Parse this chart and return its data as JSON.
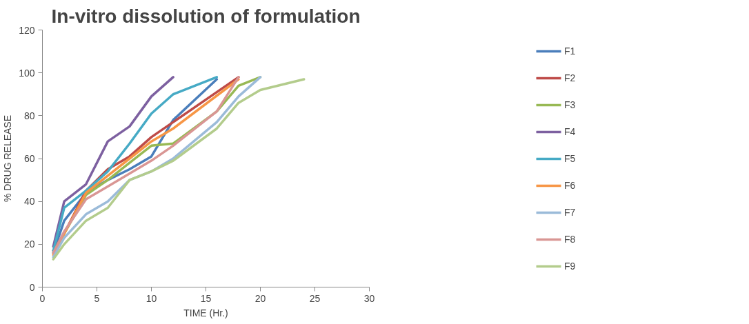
{
  "chart_data": {
    "type": "line",
    "title": "In-vitro dissolution of formulation",
    "xlabel": "TIME (Hr.)",
    "ylabel": "% DRUG RELEASE",
    "xlim": [
      0,
      30
    ],
    "xticks": [
      0,
      5,
      10,
      15,
      20,
      25,
      30
    ],
    "ylim": [
      0,
      120
    ],
    "yticks": [
      0,
      20,
      40,
      60,
      80,
      100,
      120
    ],
    "grid": false,
    "legend": "right",
    "marker": "none",
    "line_style": "solid",
    "series": [
      {
        "name": "F1",
        "color": "#4a7ebb",
        "x": [
          1,
          2,
          4,
          6,
          8,
          10,
          12,
          16
        ],
        "values": [
          16,
          31,
          44,
          50,
          55,
          61,
          78,
          97
        ]
      },
      {
        "name": "F2",
        "color": "#be4b48",
        "x": [
          1,
          2,
          4,
          6,
          8,
          10,
          12,
          18
        ],
        "values": [
          17,
          25,
          45,
          55,
          61,
          70,
          77,
          98
        ]
      },
      {
        "name": "F3",
        "color": "#98b954",
        "x": [
          1,
          2,
          4,
          6,
          8,
          10,
          12,
          16,
          18,
          20
        ],
        "values": [
          16,
          25,
          43,
          50,
          58,
          66,
          67,
          82,
          94,
          98
        ]
      },
      {
        "name": "F4",
        "color": "#7d60a0",
        "x": [
          1,
          2,
          4,
          6,
          8,
          10,
          12
        ],
        "values": [
          19,
          40,
          48,
          68,
          75,
          89,
          98
        ]
      },
      {
        "name": "F5",
        "color": "#46aac5",
        "x": [
          1,
          2,
          4,
          6,
          8,
          10,
          12,
          16
        ],
        "values": [
          17,
          37,
          45,
          54,
          67,
          81,
          90,
          98
        ]
      },
      {
        "name": "F6",
        "color": "#f79646",
        "x": [
          1,
          2,
          4,
          6,
          8,
          10,
          12,
          18
        ],
        "values": [
          15,
          25,
          44,
          52,
          60,
          68,
          74,
          97
        ]
      },
      {
        "name": "F7",
        "color": "#9bbbd9",
        "x": [
          1,
          2,
          4,
          6,
          8,
          10,
          12,
          16,
          18,
          20
        ],
        "values": [
          14,
          23,
          34,
          40,
          50,
          54,
          60,
          77,
          89,
          98
        ]
      },
      {
        "name": "F8",
        "color": "#d99694",
        "x": [
          1,
          2,
          4,
          6,
          8,
          10,
          12,
          16,
          18
        ],
        "values": [
          16,
          26,
          41,
          47,
          53,
          59,
          66,
          82,
          98
        ]
      },
      {
        "name": "F9",
        "color": "#b3cc8c",
        "x": [
          1,
          2,
          4,
          6,
          8,
          10,
          12,
          16,
          18,
          20,
          24
        ],
        "values": [
          13,
          20,
          31,
          37,
          50,
          54,
          59,
          74,
          86,
          92,
          97
        ]
      }
    ]
  }
}
